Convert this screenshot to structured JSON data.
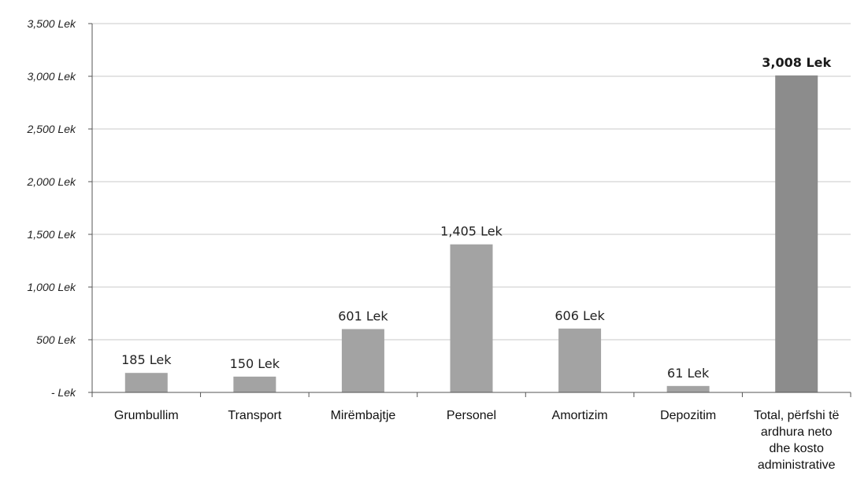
{
  "chart_data": {
    "type": "bar",
    "categories": [
      "Grumbullim",
      "Transport",
      "Mirëmbajtje",
      "Personel",
      "Amortizim",
      "Depozitim",
      [
        "Total, përfshi të",
        "ardhura neto",
        "dhe kosto",
        "administrative"
      ]
    ],
    "values": [
      185,
      150,
      601,
      1405,
      606,
      61,
      3008
    ],
    "data_labels": [
      "185 Lek",
      "150 Lek",
      "601 Lek",
      "1,405 Lek",
      "606 Lek",
      "61 Lek",
      "3,008 Lek"
    ],
    "bold_labels": [
      false,
      false,
      false,
      false,
      false,
      false,
      true
    ],
    "ylim": [
      0,
      3500
    ],
    "yticks": [
      0,
      500,
      1000,
      1500,
      2000,
      2500,
      3000,
      3500
    ],
    "ytick_labels": [
      "- Lek",
      "500 Lek",
      "1,000 Lek",
      "1,500 Lek",
      "2,000 Lek",
      "2,500 Lek",
      "3,000 Lek",
      "3,500 Lek"
    ],
    "grid": true,
    "colors": {
      "bar": "#a3a3a3",
      "bar_total": "#8c8c8c",
      "grid": "#c8c8c8",
      "axis": "#555555"
    }
  }
}
